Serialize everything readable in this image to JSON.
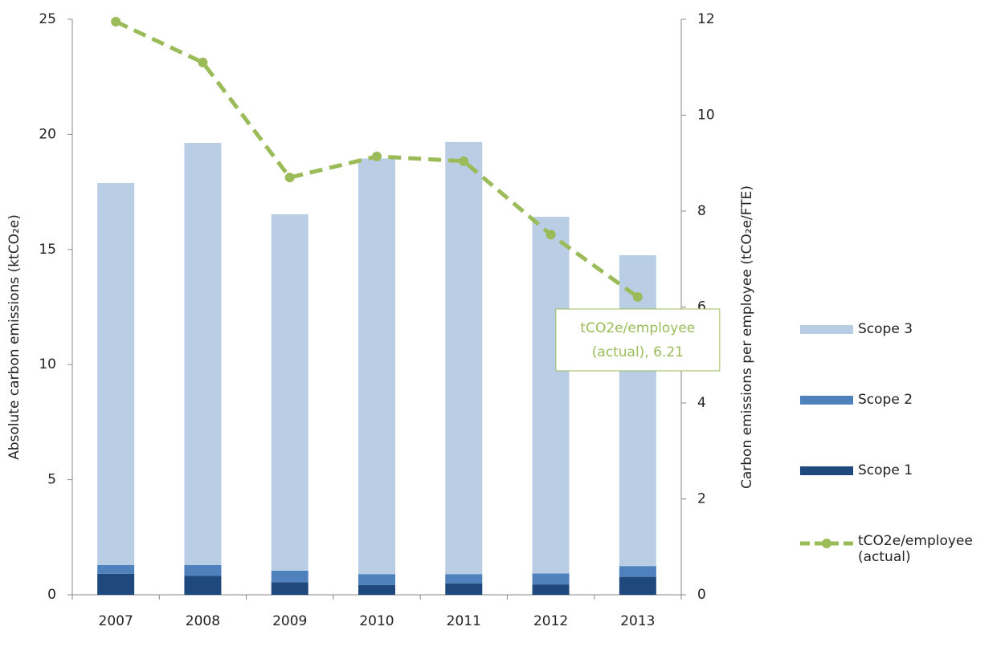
{
  "chart_data": {
    "type": "bar",
    "categories": [
      "2007",
      "2008",
      "2009",
      "2010",
      "2011",
      "2012",
      "2013"
    ],
    "series": [
      {
        "name": "Scope 1",
        "color": "#1f497d",
        "values": [
          0.91,
          0.82,
          0.55,
          0.42,
          0.5,
          0.45,
          0.78
        ]
      },
      {
        "name": "Scope 2",
        "color": "#4f81bd",
        "values": [
          0.38,
          0.47,
          0.5,
          0.48,
          0.4,
          0.48,
          0.47
        ]
      },
      {
        "name": "Scope 3",
        "color": "#b9cde5",
        "values": [
          16.6,
          18.34,
          15.48,
          18.05,
          18.77,
          15.49,
          13.5
        ]
      },
      {
        "name": "tCO2e/employee (actual)",
        "color": "#9bbb59",
        "type": "line",
        "axis": "y2",
        "values": [
          11.95,
          11.1,
          8.7,
          9.14,
          9.04,
          7.51,
          6.21
        ]
      }
    ],
    "stacked": true,
    "ylabel": "Absolute carbon emissions (ktCO₂e)",
    "y2label": "Carbon emissions per employee (tCO₂e/FTE)",
    "ylim": [
      0,
      25
    ],
    "yticks": [
      0,
      5,
      10,
      15,
      20,
      25
    ],
    "y2lim": [
      0,
      12
    ],
    "y2ticks": [
      0,
      2,
      4,
      6,
      8,
      10,
      12
    ],
    "annotation": {
      "lines": [
        "tCO2e/employee",
        "(actual), 6.21"
      ],
      "series": 3,
      "index": 6
    },
    "legend": "right",
    "grid": false
  }
}
